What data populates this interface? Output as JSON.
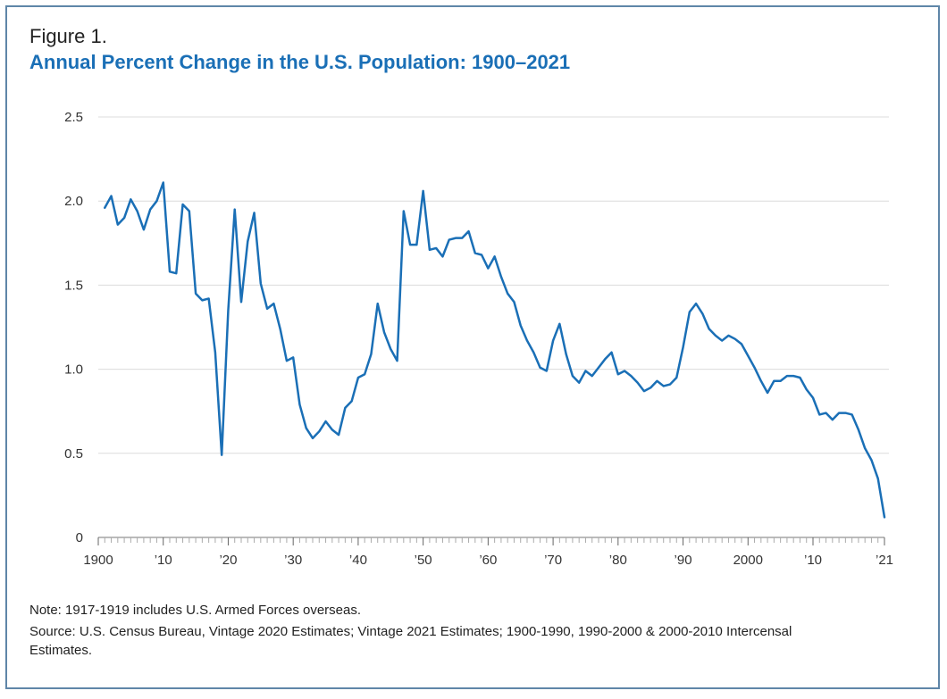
{
  "figure_label": "Figure 1.",
  "title": "Annual Percent Change in the U.S. Population: 1900–2021",
  "note": "Note: 1917-1919 includes U.S. Armed Forces overseas.",
  "source": "Source: U.S. Census Bureau, Vintage 2020 Estimates; Vintage 2021 Estimates; 1900-1990, 1990-2000 & 2000-2010 Intercensal Estimates.",
  "colors": {
    "line": "#1a6fb6",
    "title": "#1a6fb6",
    "grid": "#dcdcdc",
    "frame": "#5f86a8"
  },
  "chart_data": {
    "type": "line",
    "title": "Annual Percent Change in the U.S. Population: 1900–2021",
    "xlabel": "",
    "ylabel": "",
    "xlim": [
      1900,
      2021
    ],
    "ylim": [
      0,
      2.5
    ],
    "grid": "horizontal",
    "yticks": [
      {
        "value": 0,
        "label": "0"
      },
      {
        "value": 0.5,
        "label": "0.5"
      },
      {
        "value": 1.0,
        "label": "1.0"
      },
      {
        "value": 1.5,
        "label": "1.5"
      },
      {
        "value": 2.0,
        "label": "2.0"
      },
      {
        "value": 2.5,
        "label": "2.5"
      }
    ],
    "xticks": [
      {
        "value": 1900,
        "label": "1900"
      },
      {
        "value": 1910,
        "label": "’10"
      },
      {
        "value": 1920,
        "label": "’20"
      },
      {
        "value": 1930,
        "label": "’30"
      },
      {
        "value": 1940,
        "label": "’40"
      },
      {
        "value": 1950,
        "label": "’50"
      },
      {
        "value": 1960,
        "label": "’60"
      },
      {
        "value": 1970,
        "label": "’70"
      },
      {
        "value": 1980,
        "label": "’80"
      },
      {
        "value": 1990,
        "label": "’90"
      },
      {
        "value": 2000,
        "label": "2000"
      },
      {
        "value": 2010,
        "label": "’10"
      },
      {
        "value": 2021,
        "label": "’21"
      }
    ],
    "x": [
      1901,
      1902,
      1903,
      1904,
      1905,
      1906,
      1907,
      1908,
      1909,
      1910,
      1911,
      1912,
      1913,
      1914,
      1915,
      1916,
      1917,
      1918,
      1919,
      1920,
      1921,
      1922,
      1923,
      1924,
      1925,
      1926,
      1927,
      1928,
      1929,
      1930,
      1931,
      1932,
      1933,
      1934,
      1935,
      1936,
      1937,
      1938,
      1939,
      1940,
      1941,
      1942,
      1943,
      1944,
      1945,
      1946,
      1947,
      1948,
      1949,
      1950,
      1951,
      1952,
      1953,
      1954,
      1955,
      1956,
      1957,
      1958,
      1959,
      1960,
      1961,
      1962,
      1963,
      1964,
      1965,
      1966,
      1967,
      1968,
      1969,
      1970,
      1971,
      1972,
      1973,
      1974,
      1975,
      1976,
      1977,
      1978,
      1979,
      1980,
      1981,
      1982,
      1983,
      1984,
      1985,
      1986,
      1987,
      1988,
      1989,
      1990,
      1991,
      1992,
      1993,
      1994,
      1995,
      1996,
      1997,
      1998,
      1999,
      2000,
      2001,
      2002,
      2003,
      2004,
      2005,
      2006,
      2007,
      2008,
      2009,
      2010,
      2011,
      2012,
      2013,
      2014,
      2015,
      2016,
      2017,
      2018,
      2019,
      2020,
      2021
    ],
    "series": [
      {
        "values": [
          1.96,
          2.03,
          1.86,
          1.9,
          2.01,
          1.94,
          1.83,
          1.95,
          2.0,
          2.11,
          1.58,
          1.57,
          1.98,
          1.94,
          1.45,
          1.41,
          1.42,
          1.1,
          0.49,
          1.35,
          1.95,
          1.4,
          1.76,
          1.93,
          1.51,
          1.36,
          1.39,
          1.24,
          1.05,
          1.07,
          0.79,
          0.65,
          0.59,
          0.63,
          0.69,
          0.64,
          0.61,
          0.77,
          0.81,
          0.95,
          0.97,
          1.09,
          1.39,
          1.22,
          1.12,
          1.05,
          1.94,
          1.74,
          1.74,
          2.06,
          1.71,
          1.72,
          1.67,
          1.77,
          1.78,
          1.78,
          1.82,
          1.69,
          1.68,
          1.6,
          1.67,
          1.55,
          1.45,
          1.4,
          1.26,
          1.17,
          1.1,
          1.01,
          0.99,
          1.17,
          1.27,
          1.09,
          0.96,
          0.92,
          0.99,
          0.96,
          1.01,
          1.06,
          1.1,
          0.97,
          0.99,
          0.96,
          0.92,
          0.87,
          0.89,
          0.93,
          0.9,
          0.91,
          0.95,
          1.13,
          1.34,
          1.39,
          1.33,
          1.24,
          1.2,
          1.17,
          1.2,
          1.18,
          1.15,
          1.08,
          1.01,
          0.93,
          0.86,
          0.93,
          0.93,
          0.96,
          0.96,
          0.95,
          0.88,
          0.83,
          0.73,
          0.74,
          0.7,
          0.74,
          0.74,
          0.73,
          0.64,
          0.53,
          0.46,
          0.35,
          0.12
        ]
      }
    ]
  }
}
